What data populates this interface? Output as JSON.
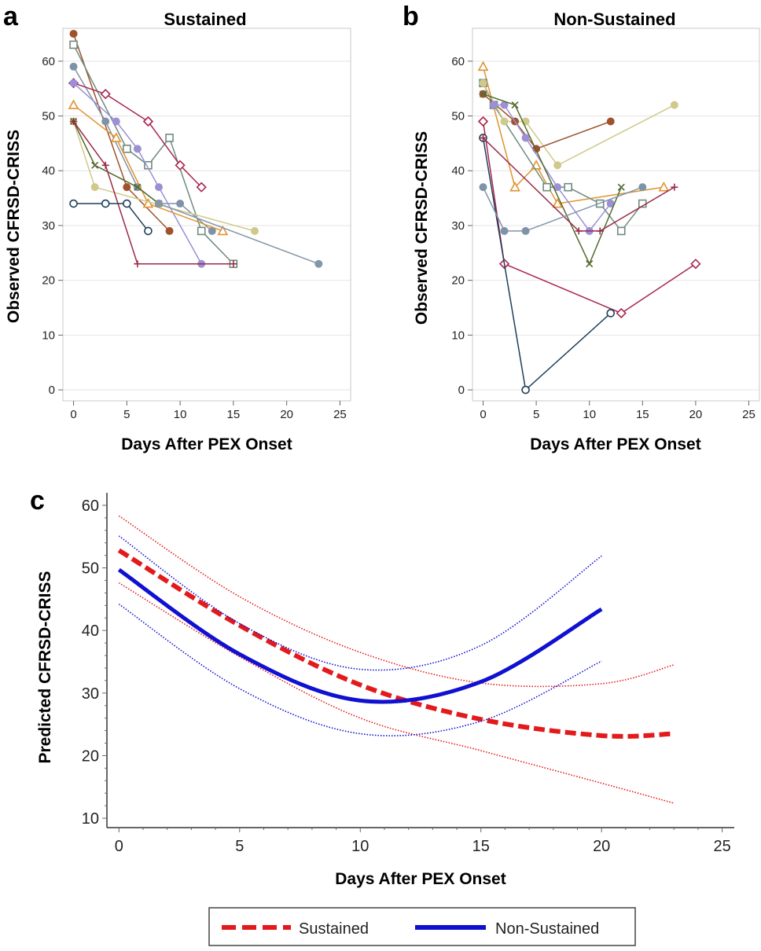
{
  "panels": {
    "a": {
      "letter": "a",
      "title": "Sustained"
    },
    "b": {
      "letter": "b",
      "title": "Non-Sustained"
    },
    "c": {
      "letter": "c"
    }
  },
  "legend": {
    "sustained": "Sustained",
    "non_sustained": "Non-Sustained"
  },
  "chart_data": [
    {
      "panel": "a",
      "type": "line",
      "title": "Sustained",
      "xlabel": "Days After PEX Onset",
      "ylabel": "Observed CFRSD-CRISS",
      "xlim": [
        -1,
        26
      ],
      "ylim": [
        -2,
        66
      ],
      "xticks": [
        0,
        5,
        10,
        15,
        20,
        25
      ],
      "yticks": [
        0,
        10,
        20,
        30,
        40,
        50,
        60
      ],
      "grid": "horizontal",
      "series": [
        {
          "name": "S1",
          "color": "#a0522d",
          "marker": "dot",
          "x": [
            0,
            5,
            9
          ],
          "y": [
            65,
            37,
            29
          ]
        },
        {
          "name": "S2",
          "color": "#6e8b7e",
          "marker": "square",
          "x": [
            0,
            5,
            7,
            9,
            12,
            15
          ],
          "y": [
            63,
            44,
            41,
            46,
            29,
            23
          ]
        },
        {
          "name": "S3",
          "color": "#7f93a8",
          "marker": "dot",
          "x": [
            0,
            3,
            6,
            8,
            10,
            13
          ],
          "y": [
            59,
            49,
            37,
            34,
            34,
            29
          ]
        },
        {
          "name": "S4",
          "color": "#a8264e",
          "marker": "diamond",
          "x": [
            0,
            3,
            7,
            10,
            12
          ],
          "y": [
            56,
            54,
            49,
            41,
            37
          ]
        },
        {
          "name": "S5",
          "color": "#9b8fd6",
          "marker": "dot",
          "x": [
            0,
            4,
            6,
            8,
            12
          ],
          "y": [
            56,
            49,
            44,
            37,
            23
          ]
        },
        {
          "name": "S6",
          "color": "#e0922f",
          "marker": "triangle",
          "x": [
            0,
            4,
            7,
            14
          ],
          "y": [
            52,
            46,
            34,
            29
          ]
        },
        {
          "name": "S7",
          "color": "#d0c98a",
          "marker": "dot",
          "x": [
            0,
            2,
            17
          ],
          "y": [
            49,
            37,
            29
          ]
        },
        {
          "name": "S8",
          "color": "#556b2f",
          "marker": "x",
          "x": [
            0,
            2,
            6,
            8
          ],
          "y": [
            49,
            41,
            37,
            34
          ]
        },
        {
          "name": "S9",
          "color": "#9b2a48",
          "marker": "plus",
          "x": [
            0,
            3,
            6,
            15
          ],
          "y": [
            49,
            41,
            23,
            23
          ]
        },
        {
          "name": "S10",
          "color": "#1f3f5b",
          "marker": "circle",
          "x": [
            0,
            3,
            5,
            7
          ],
          "y": [
            34,
            34,
            34,
            29
          ]
        },
        {
          "name": "S11",
          "color": "#8397a8",
          "marker": "dot",
          "x": [
            8,
            23
          ],
          "y": [
            34,
            23
          ]
        }
      ]
    },
    {
      "panel": "b",
      "type": "line",
      "title": "Non-Sustained",
      "xlabel": "Days After PEX Onset",
      "ylabel": "Observed CFRSD-CRISS",
      "xlim": [
        -1,
        26
      ],
      "ylim": [
        -2,
        66
      ],
      "xticks": [
        0,
        5,
        10,
        15,
        20,
        25
      ],
      "yticks": [
        0,
        10,
        20,
        30,
        40,
        50,
        60
      ],
      "grid": "horizontal",
      "series": [
        {
          "name": "N1",
          "color": "#e0922f",
          "marker": "triangle",
          "x": [
            0,
            3,
            5,
            7,
            17
          ],
          "y": [
            59,
            37,
            41,
            34,
            37
          ]
        },
        {
          "name": "N2",
          "color": "#6e8b7e",
          "marker": "square",
          "x": [
            0,
            1,
            6,
            8,
            11,
            13,
            15
          ],
          "y": [
            56,
            52,
            37,
            37,
            34,
            29,
            34
          ]
        },
        {
          "name": "N3",
          "color": "#d0c98a",
          "marker": "dot",
          "x": [
            0,
            2,
            4,
            7,
            18
          ],
          "y": [
            56,
            49,
            49,
            41,
            52
          ]
        },
        {
          "name": "N4",
          "color": "#a0522d",
          "marker": "dot",
          "x": [
            0,
            3,
            5,
            12
          ],
          "y": [
            54,
            49,
            44,
            49
          ]
        },
        {
          "name": "N5",
          "color": "#9b8fd6",
          "marker": "dot",
          "x": [
            1,
            2,
            4,
            7,
            10,
            12
          ],
          "y": [
            52,
            52,
            46,
            37,
            29,
            34
          ]
        },
        {
          "name": "N6",
          "color": "#556b2f",
          "marker": "x",
          "x": [
            0,
            3,
            10,
            13
          ],
          "y": [
            54,
            52,
            23,
            37
          ]
        },
        {
          "name": "N7",
          "color": "#a8264e",
          "marker": "diamond",
          "x": [
            0,
            2,
            13,
            20
          ],
          "y": [
            49,
            23,
            14,
            23
          ]
        },
        {
          "name": "N8",
          "color": "#1f3f5b",
          "marker": "circle",
          "x": [
            0,
            4,
            12
          ],
          "y": [
            46,
            0,
            14
          ]
        },
        {
          "name": "N9",
          "color": "#9b2a48",
          "marker": "plus",
          "x": [
            0,
            9,
            11,
            18
          ],
          "y": [
            46,
            29,
            29,
            37
          ]
        },
        {
          "name": "N10",
          "color": "#7f93a8",
          "marker": "dot",
          "x": [
            0,
            2,
            4,
            15
          ],
          "y": [
            37,
            29,
            29,
            37
          ]
        }
      ]
    },
    {
      "panel": "c",
      "type": "line",
      "title": "",
      "xlabel": "Days After PEX Onset",
      "ylabel": "Predicted CFRSD-CRISS",
      "xlim": [
        -0.5,
        25.5
      ],
      "ylim": [
        8.5,
        62
      ],
      "xticks": [
        0,
        5,
        10,
        15,
        20,
        25
      ],
      "yticks": [
        10,
        20,
        30,
        40,
        50,
        60
      ],
      "legend": "bottom",
      "series": [
        {
          "name": "Sustained",
          "color": "#e31a1c",
          "style": "dashed",
          "role": "estimate",
          "x": [
            0,
            5,
            10,
            15,
            20,
            23
          ],
          "y": [
            52.8,
            40.8,
            31.3,
            25.8,
            23.2,
            23.5
          ]
        },
        {
          "name": "Sustained upper CI",
          "color": "#e31a1c",
          "style": "dotted",
          "role": "ci",
          "x": [
            0,
            5,
            10,
            15,
            20,
            23
          ],
          "y": [
            58.3,
            45.4,
            36.5,
            31.6,
            31.5,
            34.5
          ]
        },
        {
          "name": "Sustained lower CI",
          "color": "#e31a1c",
          "style": "dotted",
          "role": "ci",
          "x": [
            0,
            5,
            10,
            15,
            20,
            23
          ],
          "y": [
            47.6,
            35.8,
            26.0,
            20.8,
            15.6,
            12.4
          ]
        },
        {
          "name": "Non-Sustained",
          "color": "#1010d0",
          "style": "solid",
          "role": "estimate",
          "x": [
            0,
            5,
            10,
            15,
            20
          ],
          "y": [
            49.7,
            36.2,
            28.8,
            31.8,
            43.4
          ]
        },
        {
          "name": "Non-Sustained upper CI",
          "color": "#1010d0",
          "style": "dotted",
          "role": "ci",
          "x": [
            0,
            5,
            10,
            15,
            20
          ],
          "y": [
            55.1,
            41.1,
            33.8,
            37.6,
            51.9
          ]
        },
        {
          "name": "Non-Sustained lower CI",
          "color": "#1010d0",
          "style": "dotted",
          "role": "ci",
          "x": [
            0,
            5,
            10,
            15,
            20
          ],
          "y": [
            44.2,
            30.7,
            23.5,
            25.5,
            35.1
          ]
        }
      ]
    }
  ]
}
